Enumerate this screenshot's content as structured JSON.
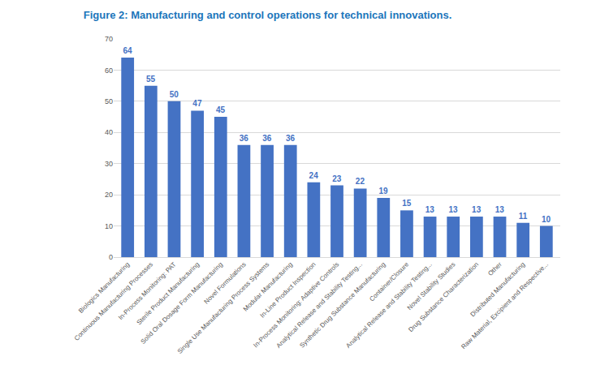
{
  "chart_data": {
    "type": "bar",
    "title": "Figure 2: Manufacturing and control operations for technical innovations.",
    "categories": [
      "Biologics Manufacturing",
      "Continuous Manufacturing Processes",
      "In-Process Monitoring: PAT",
      "Sterile Product Manufacturing",
      "Solid Oral Dosage Form Manufacturing",
      "Novel Formulations",
      "Single Use Manufacturing Process Systems",
      "Modular Manufacturing",
      "In-Line Product Inspection",
      "In-Process Monitoring: Adaptive Controls",
      "Analytical Release and Stability Testing...",
      "Synthetic Drug Substance Manufacturing",
      "Container/Closure",
      "Analytical Release and Stability Testing...",
      "Novel Stability Studies",
      "Drug Substance Characterization",
      "Other",
      "Distributed Manufacturing",
      "Raw Material, Excipient and Respective..."
    ],
    "values": [
      64,
      55,
      50,
      47,
      45,
      36,
      36,
      36,
      24,
      23,
      22,
      19,
      15,
      13,
      13,
      13,
      13,
      11,
      10
    ],
    "color": "#4472c4",
    "ylim": [
      0,
      70
    ],
    "yticks": [
      0,
      10,
      20,
      30,
      40,
      50,
      60,
      70
    ],
    "grid": true,
    "data_labels": true
  }
}
